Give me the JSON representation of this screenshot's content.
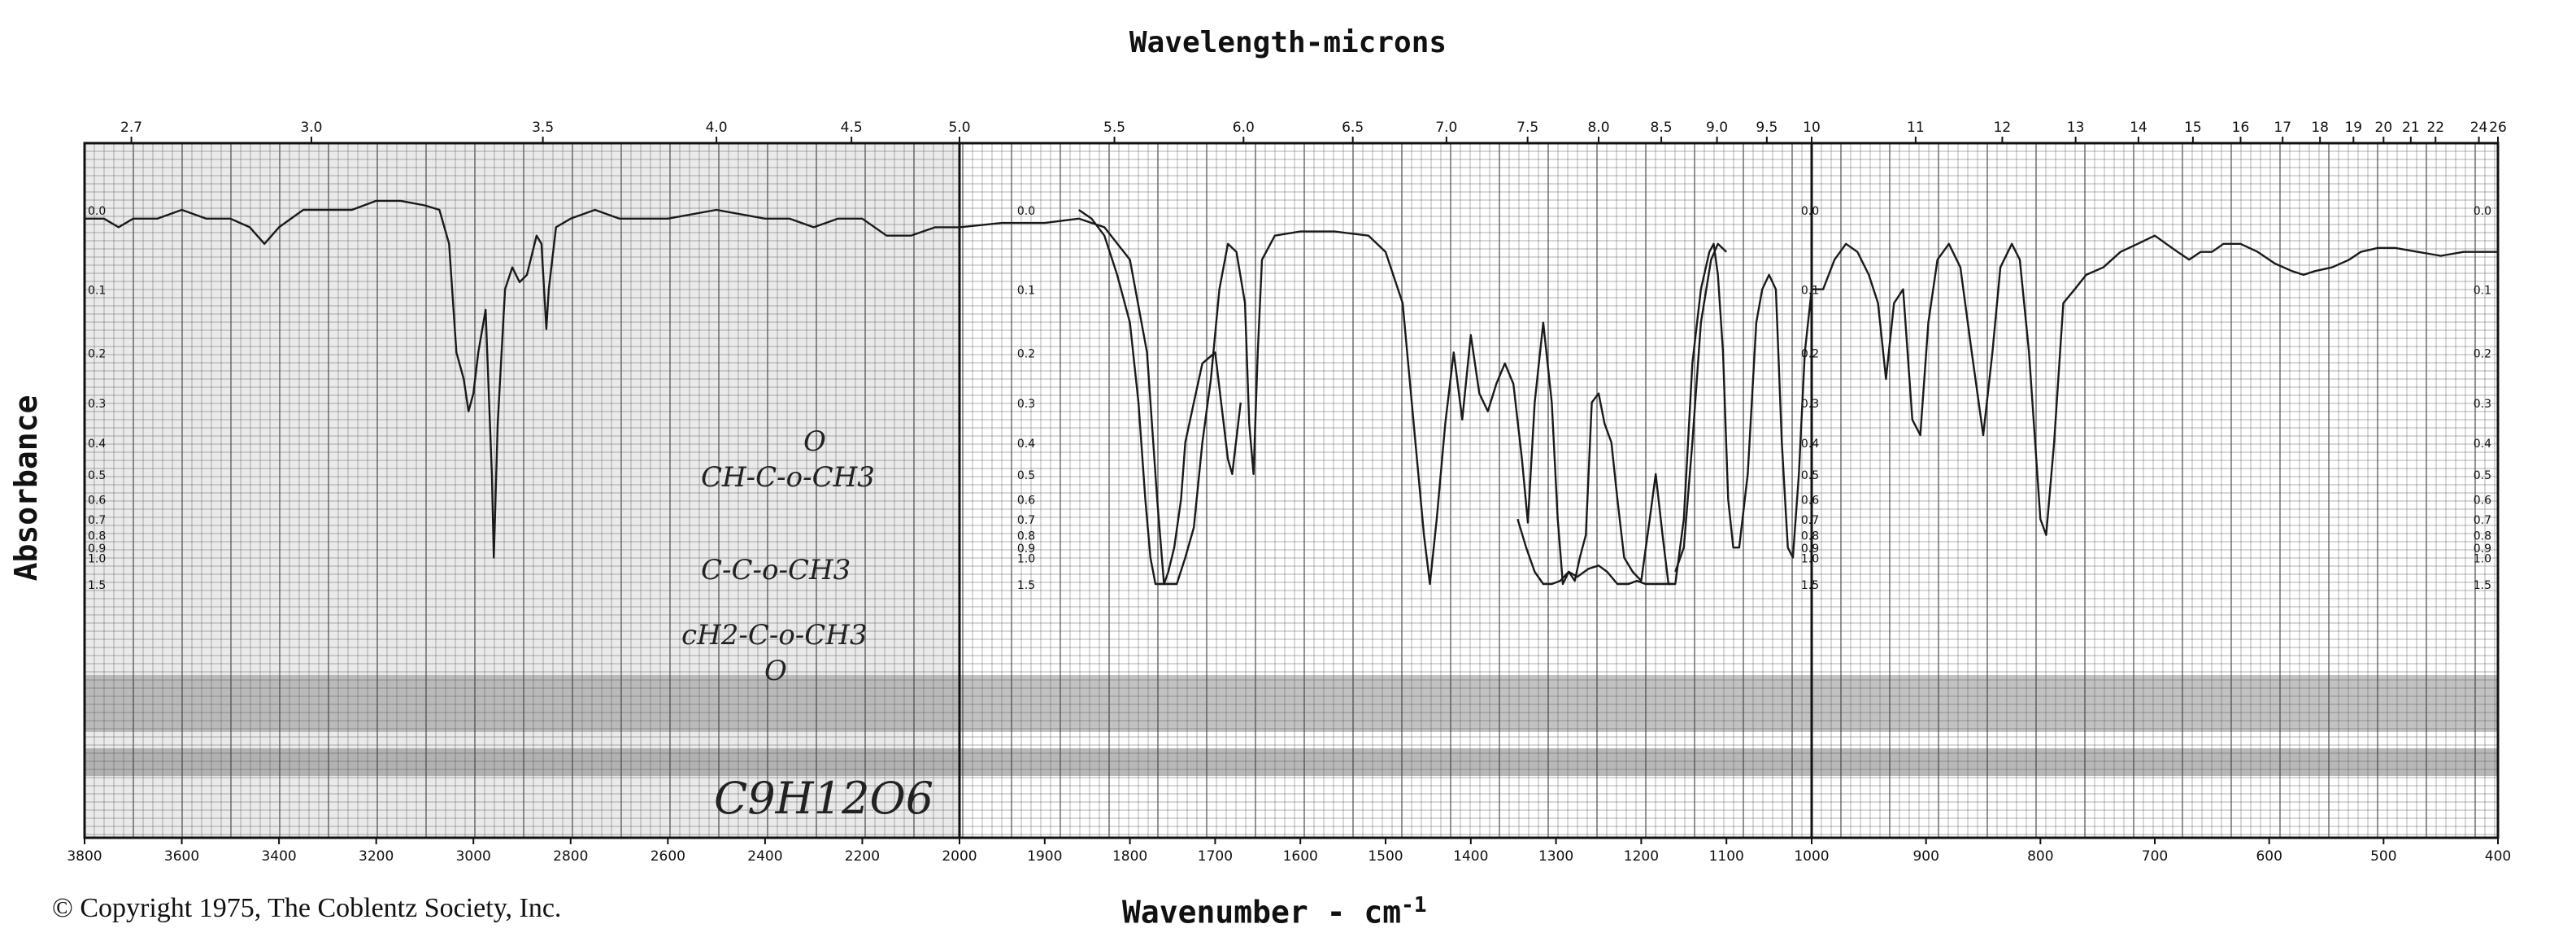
{
  "top_axis_title": "Wavelength-microns",
  "bottom_axis_title": "Wavenumber - cm",
  "bottom_axis_exponent": "-1",
  "y_axis_title": "Absorbance",
  "copyright": "© Copyright 1975, The Coblentz Society, Inc.",
  "annotations": {
    "structure_line1": "CH-C-o-CH3",
    "structure_line2": "C-C-o-CH3",
    "structure_line3": "cH2-C-o-CH3",
    "oxygen_top": "O",
    "oxygen_bottom": "O",
    "formula": "C9H12O6"
  },
  "colors": {
    "trace": "#1a1a1a",
    "grid": "#555555",
    "paper_shade": "#d9d9d9",
    "band_shade": "#9a9a9a"
  },
  "chart_data": {
    "type": "line",
    "x_axis": {
      "label": "Wavenumber - cm-1",
      "segments": [
        {
          "from": 3800,
          "to": 2000,
          "ticks": [
            "3800",
            "3600",
            "3400",
            "3200",
            "3000",
            "2800",
            "2600",
            "2400",
            "2200",
            "2000"
          ]
        },
        {
          "from": 2000,
          "to": 1000,
          "ticks": [
            "1900",
            "1800",
            "1700",
            "1600",
            "1500",
            "1400",
            "1300",
            "1200",
            "1100",
            "1000"
          ]
        },
        {
          "from": 1000,
          "to": 400,
          "ticks": [
            "900",
            "800",
            "700",
            "600",
            "500",
            "400"
          ]
        }
      ]
    },
    "top_axis": {
      "label": "Wavelength-microns",
      "ticks": [
        "2.7",
        "3.0",
        "3.5",
        "4.0",
        "4.5",
        "5.0",
        "5.5",
        "6.0",
        "6.5",
        "7.0",
        "7.5",
        "8.0",
        "8.5",
        "9.0",
        "9.5",
        "10",
        "11",
        "12",
        "13",
        "14",
        "15",
        "16",
        "17",
        "18",
        "19",
        "20",
        "21",
        "22",
        "24",
        "26"
      ]
    },
    "y_axis": {
      "label": "Absorbance",
      "scale": "log-transmittance",
      "ticks": [
        "0.0",
        "0.1",
        "0.2",
        "0.3",
        "0.4",
        "0.5",
        "0.6",
        "0.7",
        "0.8",
        "0.9",
        "1.0",
        "1.5"
      ],
      "range": [
        0,
        1.5
      ]
    },
    "series": [
      {
        "points": [
          [
            3800,
            0.01
          ],
          [
            3760,
            0.01
          ],
          [
            3730,
            0.02
          ],
          [
            3700,
            0.01
          ],
          [
            3650,
            0.01
          ],
          [
            3600,
            0.0
          ],
          [
            3550,
            0.01
          ],
          [
            3500,
            0.01
          ],
          [
            3460,
            0.02
          ],
          [
            3430,
            0.04
          ],
          [
            3400,
            0.02
          ],
          [
            3350,
            0.0
          ],
          [
            3300,
            0.0
          ],
          [
            3250,
            0.0
          ],
          [
            3200,
            -0.01
          ],
          [
            3150,
            -0.01
          ],
          [
            3100,
            -0.005
          ],
          [
            3070,
            0.0
          ],
          [
            3050,
            0.04
          ],
          [
            3035,
            0.2
          ],
          [
            3020,
            0.25
          ],
          [
            3010,
            0.32
          ],
          [
            3000,
            0.28
          ],
          [
            2990,
            0.2
          ],
          [
            2975,
            0.13
          ],
          [
            2962,
            0.5
          ],
          [
            2958,
            1.0
          ],
          [
            2950,
            0.35
          ],
          [
            2935,
            0.1
          ],
          [
            2920,
            0.07
          ],
          [
            2905,
            0.09
          ],
          [
            2890,
            0.08
          ],
          [
            2870,
            0.03
          ],
          [
            2860,
            0.04
          ],
          [
            2850,
            0.16
          ],
          [
            2845,
            0.1
          ],
          [
            2830,
            0.02
          ],
          [
            2800,
            0.01
          ],
          [
            2750,
            0.0
          ],
          [
            2700,
            0.01
          ],
          [
            2600,
            0.01
          ],
          [
            2500,
            0.0
          ],
          [
            2400,
            0.01
          ],
          [
            2350,
            0.01
          ],
          [
            2300,
            0.02
          ],
          [
            2250,
            0.01
          ],
          [
            2200,
            0.01
          ],
          [
            2150,
            0.03
          ],
          [
            2100,
            0.03
          ],
          [
            2050,
            0.02
          ],
          [
            2000,
            0.02
          ],
          [
            1950,
            0.015
          ],
          [
            1900,
            0.015
          ],
          [
            1860,
            0.01
          ],
          [
            1830,
            0.02
          ],
          [
            1800,
            0.06
          ],
          [
            1780,
            0.2
          ],
          [
            1768,
            0.6
          ],
          [
            1760,
            1.5
          ],
          [
            1745,
            1.5
          ],
          [
            1735,
            1.0
          ],
          [
            1725,
            0.75
          ],
          [
            1715,
            0.4
          ],
          [
            1705,
            0.25
          ],
          [
            1695,
            0.1
          ],
          [
            1685,
            0.04
          ],
          [
            1675,
            0.05
          ],
          [
            1665,
            0.12
          ],
          [
            1660,
            0.35
          ],
          [
            1655,
            0.5
          ],
          [
            1650,
            0.2
          ],
          [
            1645,
            0.06
          ],
          [
            1630,
            0.03
          ],
          [
            1600,
            0.025
          ],
          [
            1560,
            0.025
          ],
          [
            1520,
            0.03
          ],
          [
            1500,
            0.05
          ],
          [
            1480,
            0.12
          ],
          [
            1465,
            0.4
          ],
          [
            1455,
            0.8
          ],
          [
            1448,
            1.5
          ],
          [
            1440,
            0.7
          ],
          [
            1430,
            0.35
          ],
          [
            1420,
            0.2
          ],
          [
            1410,
            0.34
          ],
          [
            1400,
            0.17
          ],
          [
            1390,
            0.28
          ],
          [
            1380,
            0.32
          ],
          [
            1370,
            0.26
          ],
          [
            1360,
            0.22
          ],
          [
            1350,
            0.26
          ],
          [
            1340,
            0.45
          ],
          [
            1333,
            0.72
          ],
          [
            1325,
            0.3
          ],
          [
            1315,
            0.15
          ],
          [
            1305,
            0.3
          ],
          [
            1298,
            0.7
          ],
          [
            1292,
            1.5
          ],
          [
            1285,
            1.2
          ],
          [
            1278,
            1.4
          ],
          [
            1272,
            1.0
          ],
          [
            1265,
            0.8
          ],
          [
            1258,
            0.3
          ],
          [
            1250,
            0.28
          ],
          [
            1243,
            0.35
          ],
          [
            1235,
            0.4
          ],
          [
            1228,
            0.6
          ],
          [
            1220,
            1.0
          ],
          [
            1210,
            1.2
          ],
          [
            1200,
            1.4
          ],
          [
            1190,
            0.7
          ],
          [
            1183,
            0.5
          ],
          [
            1175,
            0.8
          ],
          [
            1168,
            1.5
          ],
          [
            1160,
            1.5
          ],
          [
            1150,
            0.7
          ],
          [
            1140,
            0.22
          ],
          [
            1130,
            0.1
          ],
          [
            1120,
            0.05
          ],
          [
            1115,
            0.04
          ],
          [
            1110,
            0.08
          ],
          [
            1104,
            0.2
          ],
          [
            1098,
            0.6
          ],
          [
            1092,
            0.9
          ],
          [
            1085,
            0.9
          ],
          [
            1075,
            0.5
          ],
          [
            1065,
            0.15
          ],
          [
            1058,
            0.1
          ],
          [
            1050,
            0.08
          ],
          [
            1042,
            0.1
          ],
          [
            1035,
            0.4
          ],
          [
            1028,
            0.9
          ],
          [
            1022,
            1.0
          ],
          [
            1015,
            0.5
          ],
          [
            1008,
            0.2
          ],
          [
            1000,
            0.1
          ],
          [
            990,
            0.1
          ],
          [
            980,
            0.06
          ],
          [
            970,
            0.04
          ],
          [
            960,
            0.05
          ],
          [
            950,
            0.08
          ],
          [
            942,
            0.12
          ],
          [
            935,
            0.25
          ],
          [
            928,
            0.12
          ],
          [
            920,
            0.1
          ],
          [
            912,
            0.34
          ],
          [
            905,
            0.38
          ],
          [
            898,
            0.15
          ],
          [
            890,
            0.06
          ],
          [
            880,
            0.04
          ],
          [
            870,
            0.07
          ],
          [
            860,
            0.2
          ],
          [
            850,
            0.38
          ],
          [
            842,
            0.2
          ],
          [
            835,
            0.07
          ],
          [
            825,
            0.04
          ],
          [
            818,
            0.06
          ],
          [
            810,
            0.2
          ],
          [
            800,
            0.7
          ],
          [
            795,
            0.8
          ],
          [
            788,
            0.4
          ],
          [
            780,
            0.12
          ],
          [
            770,
            0.1
          ],
          [
            760,
            0.08
          ],
          [
            745,
            0.07
          ],
          [
            730,
            0.05
          ],
          [
            715,
            0.04
          ],
          [
            700,
            0.03
          ],
          [
            690,
            0.04
          ],
          [
            680,
            0.05
          ],
          [
            670,
            0.06
          ],
          [
            660,
            0.05
          ],
          [
            650,
            0.05
          ],
          [
            640,
            0.04
          ],
          [
            625,
            0.04
          ],
          [
            610,
            0.05
          ],
          [
            595,
            0.065
          ],
          [
            580,
            0.075
          ],
          [
            570,
            0.08
          ],
          [
            560,
            0.075
          ],
          [
            545,
            0.07
          ],
          [
            530,
            0.06
          ],
          [
            520,
            0.05
          ],
          [
            505,
            0.045
          ],
          [
            490,
            0.045
          ],
          [
            470,
            0.05
          ],
          [
            450,
            0.055
          ],
          [
            430,
            0.05
          ],
          [
            410,
            0.05
          ],
          [
            400,
            0.05
          ]
        ]
      },
      {
        "points": [
          [
            1860,
            0.0
          ],
          [
            1845,
            0.01
          ],
          [
            1830,
            0.03
          ],
          [
            1815,
            0.08
          ],
          [
            1800,
            0.15
          ],
          [
            1790,
            0.3
          ],
          [
            1782,
            0.6
          ],
          [
            1776,
            1.0
          ],
          [
            1770,
            1.5
          ],
          [
            1760,
            1.5
          ],
          [
            1755,
            1.2
          ],
          [
            1748,
            0.9
          ],
          [
            1740,
            0.6
          ],
          [
            1735,
            0.4
          ],
          [
            1725,
            0.3
          ],
          [
            1715,
            0.22
          ],
          [
            1700,
            0.2
          ],
          [
            1690,
            0.35
          ],
          [
            1685,
            0.45
          ],
          [
            1680,
            0.5
          ],
          [
            1670,
            0.3
          ]
        ]
      },
      {
        "points": [
          [
            1345,
            0.7
          ],
          [
            1335,
            0.9
          ],
          [
            1325,
            1.2
          ],
          [
            1315,
            1.5
          ],
          [
            1305,
            1.5
          ],
          [
            1295,
            1.4
          ],
          [
            1285,
            1.2
          ],
          [
            1275,
            1.3
          ],
          [
            1262,
            1.15
          ],
          [
            1250,
            1.1
          ],
          [
            1240,
            1.2
          ],
          [
            1228,
            1.5
          ],
          [
            1215,
            1.5
          ],
          [
            1205,
            1.4
          ],
          [
            1195,
            1.5
          ],
          [
            1180,
            1.5
          ],
          [
            1165,
            1.5
          ]
        ]
      },
      {
        "points": [
          [
            1160,
            1.2
          ],
          [
            1150,
            0.9
          ],
          [
            1140,
            0.4
          ],
          [
            1130,
            0.15
          ],
          [
            1118,
            0.06
          ],
          [
            1110,
            0.04
          ],
          [
            1100,
            0.05
          ]
        ]
      }
    ]
  }
}
